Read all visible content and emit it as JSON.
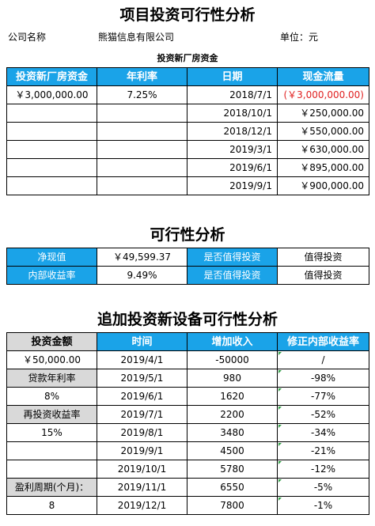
{
  "title1": "项目投资可行性分析",
  "company_label": "公司名称",
  "company_name": "熊猫信息有限公司",
  "unit": "单位：元",
  "section1_subtitle": "投资新厂房资金",
  "table1": {
    "headers": [
      "投资新厂房资金",
      "年利率",
      "日期",
      "现金流量"
    ],
    "investment": "￥3,000,000.00",
    "rate": "7.25%",
    "rows": [
      {
        "date": "2018/7/1",
        "cash": "(￥3,000,000.00)"
      },
      {
        "date": "2018/10/1",
        "cash": "￥250,000.00"
      },
      {
        "date": "2018/12/1",
        "cash": "￥550,000.00"
      },
      {
        "date": "2019/3/1",
        "cash": "￥630,000.00"
      },
      {
        "date": "2019/6/1",
        "cash": "￥895,000.00"
      },
      {
        "date": "2019/9/1",
        "cash": "￥900,000.00"
      }
    ]
  },
  "title2": "可行性分析",
  "table2": {
    "rows": [
      {
        "label": "净现值",
        "value": "￥49,599.37",
        "q": "是否值得投资",
        "a": "值得投资"
      },
      {
        "label": "内部收益率",
        "value": "9.49%",
        "q": "是否值得投资",
        "a": "值得投资"
      }
    ]
  },
  "title3": "追加投资新设备可行性分析",
  "table3": {
    "headers": [
      "投资金额",
      "时间",
      "增加收入",
      "修正内部收益率"
    ],
    "left": [
      "￥50,000.00",
      "贷款年利率",
      "8%",
      "再投资收益率",
      "15%",
      "",
      "",
      "盈利周期(个月)：",
      "8"
    ],
    "rows": [
      {
        "time": "2019/4/1",
        "income": "-50000",
        "mirr": "/"
      },
      {
        "time": "2019/5/1",
        "income": "980",
        "mirr": "-98%"
      },
      {
        "time": "2019/6/1",
        "income": "1620",
        "mirr": "-77%"
      },
      {
        "time": "2019/7/1",
        "income": "2200",
        "mirr": "-52%"
      },
      {
        "time": "2019/8/1",
        "income": "3480",
        "mirr": "-34%"
      },
      {
        "time": "2019/9/1",
        "income": "4500",
        "mirr": "-21%"
      },
      {
        "time": "2019/10/1",
        "income": "5780",
        "mirr": "-12%"
      },
      {
        "time": "2019/11/1",
        "income": "6550",
        "mirr": "-5%"
      },
      {
        "time": "2019/12/1",
        "income": "7800",
        "mirr": "-1%"
      }
    ]
  }
}
